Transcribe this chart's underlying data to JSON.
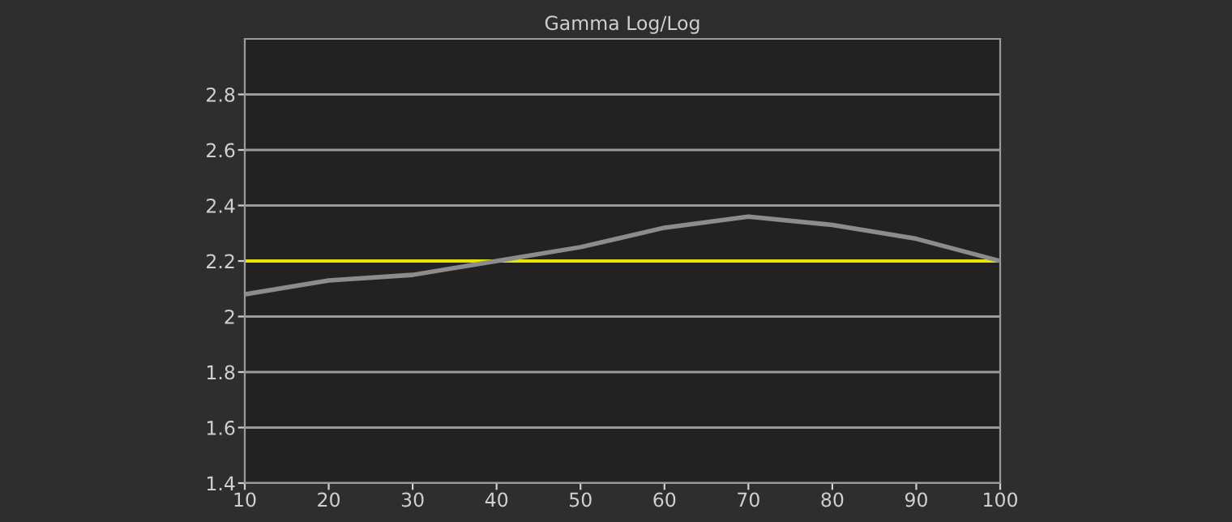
{
  "chart_data": {
    "type": "line",
    "title": "Gamma Log/Log",
    "x": [
      10,
      20,
      30,
      40,
      50,
      60,
      70,
      80,
      90,
      100
    ],
    "series": [
      {
        "color": "#8c8c8c",
        "values": [
          2.08,
          2.13,
          2.15,
          2.2,
          2.25,
          2.32,
          2.36,
          2.33,
          2.28,
          2.2
        ]
      }
    ],
    "ref_lines": [
      {
        "axis": "y",
        "value": 2.2,
        "color": "#e6e600"
      }
    ],
    "xlim": [
      10,
      100
    ],
    "xticks": [
      10,
      20,
      30,
      40,
      50,
      60,
      70,
      80,
      90,
      100
    ],
    "ylim": [
      1.4,
      3.0
    ],
    "yticks": [
      {
        "value": 1.4,
        "label": "1.4"
      },
      {
        "value": 1.6,
        "label": "1.6"
      },
      {
        "value": 1.8,
        "label": "1.8"
      },
      2,
      {
        "value": 2.2,
        "label": "2.2"
      },
      {
        "value": 2.4,
        "label": "2.4"
      },
      {
        "value": 2.6,
        "label": "2.6"
      },
      {
        "value": 2.8,
        "label": "2.8"
      }
    ],
    "grid": "y",
    "marker": "none",
    "line_style": "solid"
  }
}
